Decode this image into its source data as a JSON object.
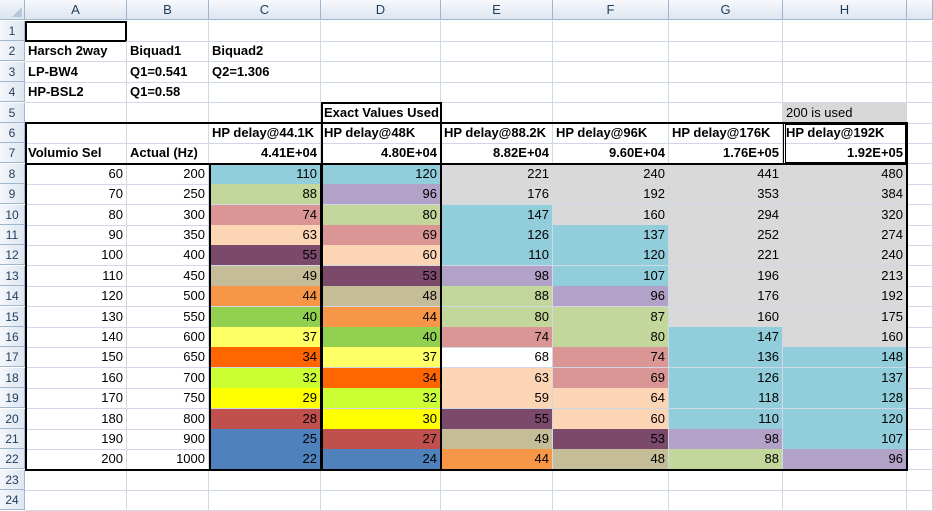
{
  "columns": [
    "A",
    "B",
    "C",
    "D",
    "E",
    "F",
    "G",
    "H"
  ],
  "rows": [
    "1",
    "2",
    "3",
    "4",
    "5",
    "6",
    "7",
    "8",
    "9",
    "10",
    "11",
    "12",
    "13",
    "14",
    "15",
    "16",
    "17",
    "18",
    "19",
    "20",
    "21",
    "22",
    "23",
    "24"
  ],
  "text": {
    "a2": "Harsch 2way",
    "b2": "Biquad1",
    "c2": "Biquad2",
    "a3": "LP-BW4",
    "b3": "Q1=0.541",
    "c3": "Q2=1.306",
    "a4": "HP-BSL2",
    "b4": "Q1=0.58",
    "d5": "Exact Values Used",
    "h5": "200 is used",
    "c6": "HP delay@44.1K",
    "d6": "HP delay@48K",
    "e6": "HP delay@88.2K",
    "f6": "HP delay@96K",
    "g6": "HP delay@176K",
    "h6": "HP delay@192K",
    "a7": "Volumio Sel",
    "b7": "Actual (Hz)",
    "c7": "4.41E+04",
    "d7": "4.80E+04",
    "e7": "8.82E+04",
    "f7": "9.60E+04",
    "g7": "1.76E+05",
    "h7": "1.92E+05"
  },
  "table": [
    {
      "a": "60",
      "b": "200",
      "c": "110",
      "d": "120",
      "e": "221",
      "f": "240",
      "g": "441",
      "h": "480"
    },
    {
      "a": "70",
      "b": "250",
      "c": "88",
      "d": "96",
      "e": "176",
      "f": "192",
      "g": "353",
      "h": "384"
    },
    {
      "a": "80",
      "b": "300",
      "c": "74",
      "d": "80",
      "e": "147",
      "f": "160",
      "g": "294",
      "h": "320"
    },
    {
      "a": "90",
      "b": "350",
      "c": "63",
      "d": "69",
      "e": "126",
      "f": "137",
      "g": "252",
      "h": "274"
    },
    {
      "a": "100",
      "b": "400",
      "c": "55",
      "d": "60",
      "e": "110",
      "f": "120",
      "g": "221",
      "h": "240"
    },
    {
      "a": "110",
      "b": "450",
      "c": "49",
      "d": "53",
      "e": "98",
      "f": "107",
      "g": "196",
      "h": "213"
    },
    {
      "a": "120",
      "b": "500",
      "c": "44",
      "d": "48",
      "e": "88",
      "f": "96",
      "g": "176",
      "h": "192"
    },
    {
      "a": "130",
      "b": "550",
      "c": "40",
      "d": "44",
      "e": "80",
      "f": "87",
      "g": "160",
      "h": "175"
    },
    {
      "a": "140",
      "b": "600",
      "c": "37",
      "d": "40",
      "e": "74",
      "f": "80",
      "g": "147",
      "h": "160"
    },
    {
      "a": "150",
      "b": "650",
      "c": "34",
      "d": "37",
      "e": "68",
      "f": "74",
      "g": "136",
      "h": "148"
    },
    {
      "a": "160",
      "b": "700",
      "c": "32",
      "d": "34",
      "e": "63",
      "f": "69",
      "g": "126",
      "h": "137"
    },
    {
      "a": "170",
      "b": "750",
      "c": "29",
      "d": "32",
      "e": "59",
      "f": "64",
      "g": "118",
      "h": "128"
    },
    {
      "a": "180",
      "b": "800",
      "c": "28",
      "d": "30",
      "e": "55",
      "f": "60",
      "g": "110",
      "h": "120"
    },
    {
      "a": "190",
      "b": "900",
      "c": "25",
      "d": "27",
      "e": "49",
      "f": "53",
      "g": "98",
      "h": "107"
    },
    {
      "a": "200",
      "b": "1000",
      "c": "22",
      "d": "24",
      "e": "44",
      "f": "48",
      "g": "88",
      "h": "96"
    }
  ],
  "value_colors": {
    "221": "#d9d9d9",
    "240": "#d9d9d9",
    "441": "#d9d9d9",
    "480": "#d9d9d9",
    "176": "#d9d9d9",
    "192": "#d9d9d9",
    "353": "#d9d9d9",
    "384": "#d9d9d9",
    "294": "#d9d9d9",
    "320": "#d9d9d9",
    "252": "#d9d9d9",
    "274": "#d9d9d9",
    "213": "#d9d9d9",
    "196": "#d9d9d9",
    "175": "#d9d9d9",
    "160": "#d9d9d9",
    "120": "#92cddc",
    "110": "#92cddc",
    "147": "#92cddc",
    "137": "#92cddc",
    "126": "#92cddc",
    "136": "#92cddc",
    "148": "#92cddc",
    "118": "#92cddc",
    "128": "#92cddc",
    "107": "#92cddc",
    "96": "#b2a2c7",
    "98": "#b2a2c7",
    "88": "#c3d69b",
    "80": "#c3d69b",
    "87": "#c3d69b",
    "74": "#da9694",
    "69": "#da9694",
    "63": "#fcd5b4",
    "60": "#fcd5b4",
    "64": "#fcd5b4",
    "59": "#fcd5b4",
    "55": "#7b4a6b",
    "53": "#7b4a6b",
    "49": "#c4bd97",
    "48": "#c4bd97",
    "44": "#f79646",
    "40": "#92d050",
    "37": "#ffff66",
    "34": "#ff6600",
    "32": "#ccff33",
    "29": "#ffff00",
    "30": "#ffff00",
    "28": "#c0504d",
    "27": "#c0504d",
    "25": "#4f81bd",
    "24": "#4f81bd",
    "22": "#4f81bd"
  }
}
